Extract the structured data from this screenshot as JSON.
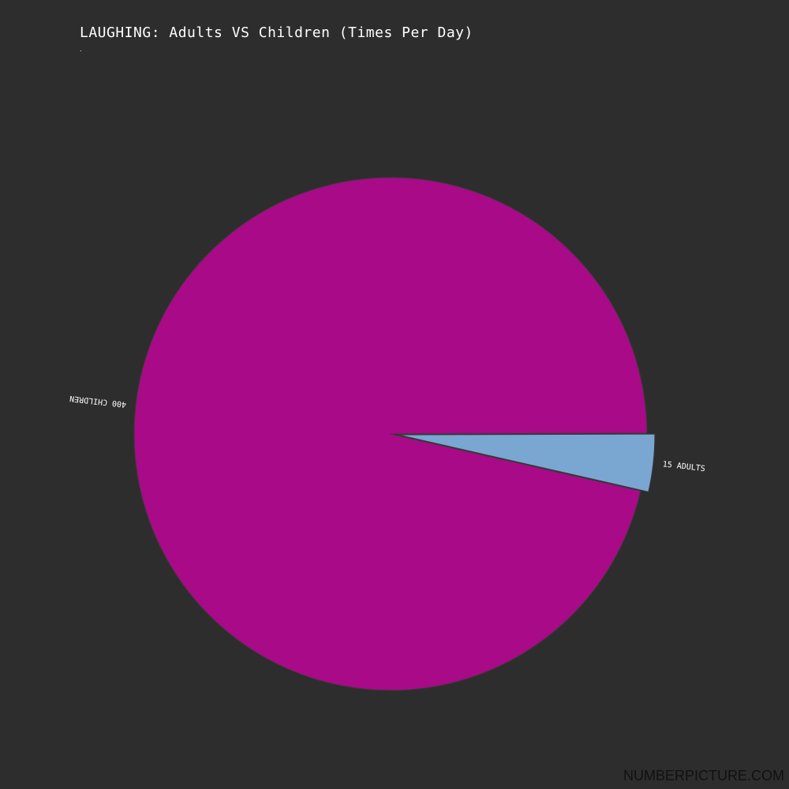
{
  "chart_data": {
    "type": "pie",
    "title": "LAUGHING: Adults VS Children (Times Per Day)",
    "subtitle": ".",
    "slices": [
      {
        "label": "400 CHILDREN",
        "value": 400,
        "color": "#a90a87"
      },
      {
        "label": "15 ADULTS",
        "value": 15,
        "color": "#7aa6d2"
      }
    ]
  },
  "watermark": "NUMBERPICTURE.COM"
}
